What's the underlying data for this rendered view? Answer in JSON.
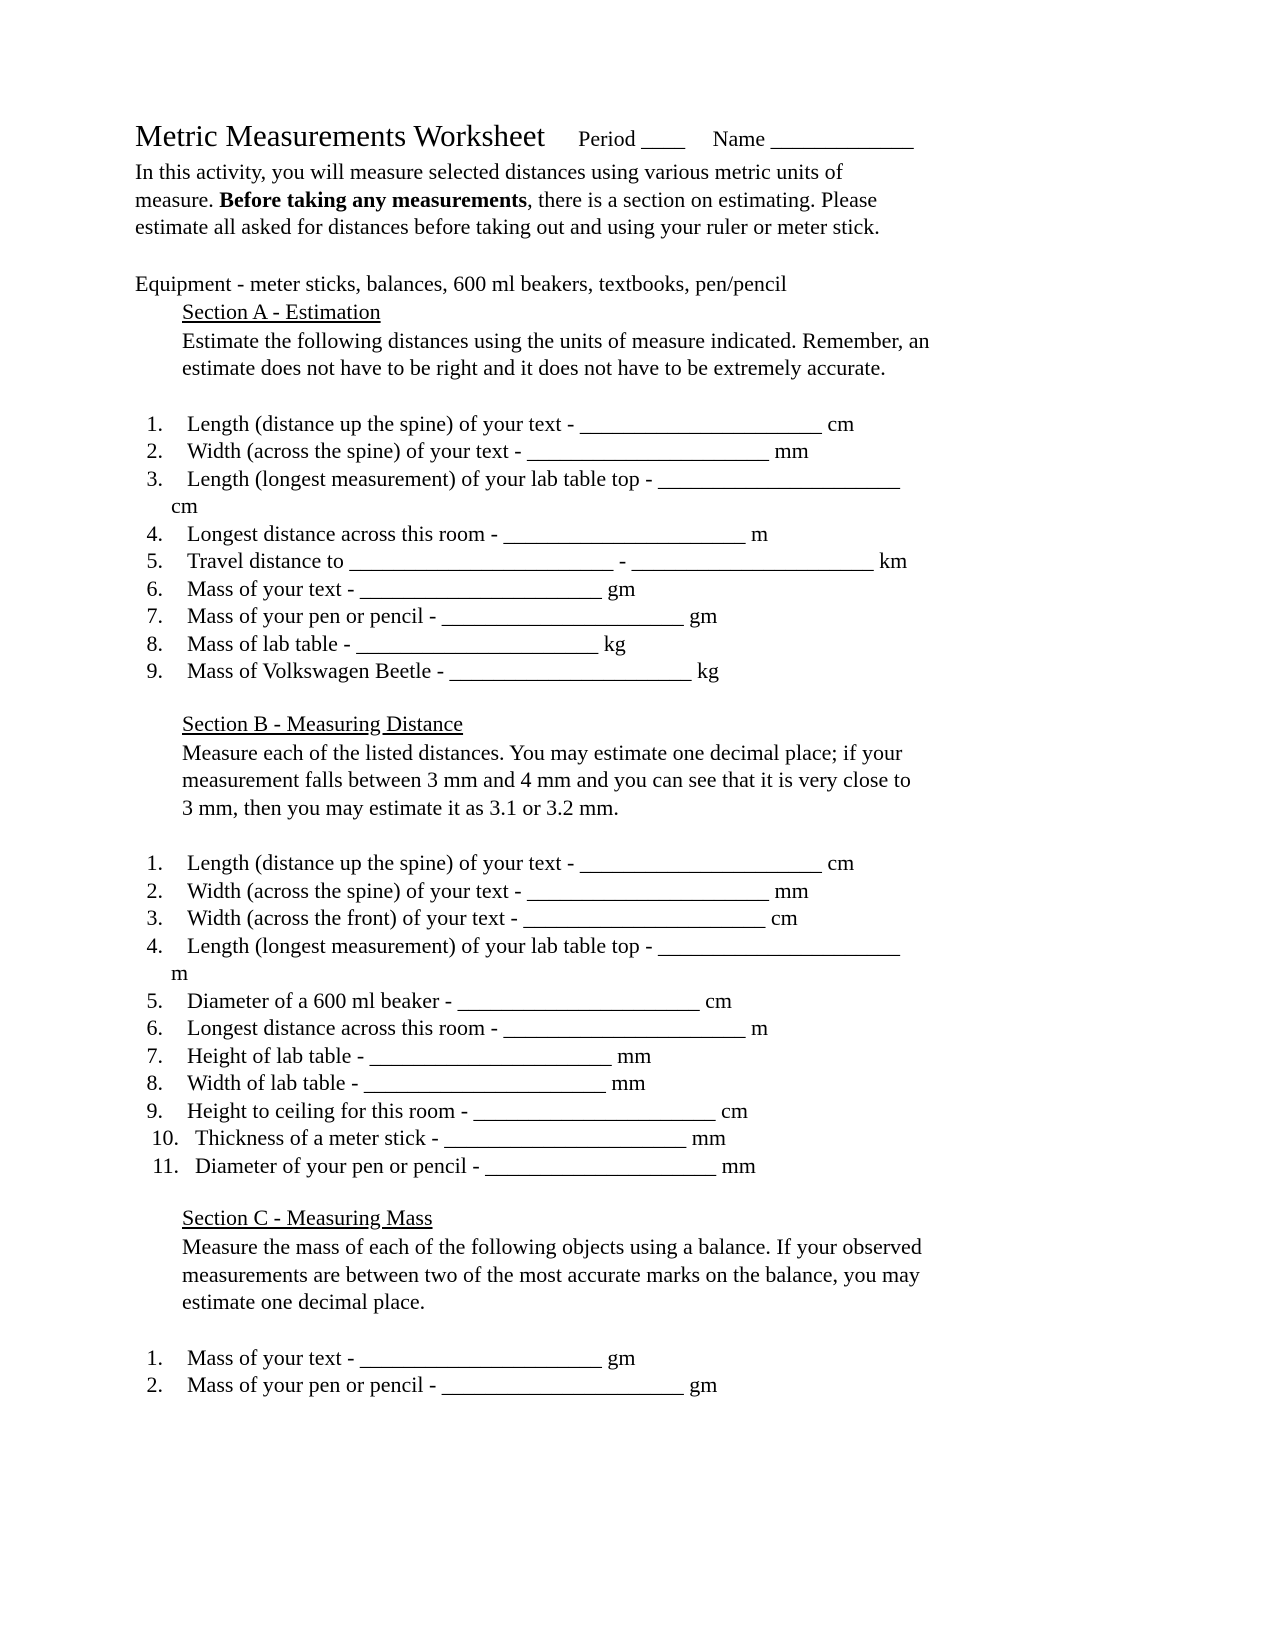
{
  "colors": {
    "text": "#000000",
    "background": "#ffffff"
  },
  "fonts": {
    "family": "Times New Roman",
    "title_size_pt": 24,
    "body_size_pt": 16
  },
  "header": {
    "title": "Metric Measurements Worksheet",
    "period_label": "Period ____",
    "name_label": "Name _____________"
  },
  "intro": {
    "line1": "In this activity, you will measure selected distances using various metric units of",
    "line2a": "measure. ",
    "line2b_bold": "Before taking any measurements",
    "line2c": ", there is a section on estimating. Please",
    "line3": "estimate all asked for distances before taking out and using your ruler or meter stick."
  },
  "equipment": "Equipment - meter sticks, balances, 600 ml beakers, textbooks, pen/pencil",
  "sectionA": {
    "heading": "Section A - Estimation",
    "desc1": "Estimate the following distances using the units of measure indicated. Remember, an",
    "desc2": "estimate does not have to be right and it does not have to be extremely accurate.",
    "items": [
      "Length (distance up the spine) of your text - ______________________ cm",
      "Width (across the spine) of your text - ______________________ mm",
      "Length (longest measurement) of your lab table top - ______________________",
      "Longest distance across this room - ______________________ m",
      "Travel distance to ________________________ - ______________________ km",
      "Mass of your text - ______________________ gm",
      "Mass of your pen or pencil - ______________________ gm",
      "Mass of lab table - ______________________ kg",
      "Mass of Volkswagen Beetle - ______________________ kg"
    ],
    "wrap3": "cm"
  },
  "sectionB": {
    "heading": "Section B - Measuring Distance",
    "desc1": "Measure each of the listed distances. You may estimate one decimal place; if your",
    "desc2": "measurement falls between 3 mm and 4 mm and you can see that it is very close to",
    "desc3": "3 mm, then you may estimate it as 3.1 or 3.2 mm.",
    "items": [
      "Length (distance up the spine) of your text - ______________________ cm",
      "Width (across the spine) of your text - ______________________ mm",
      "Width (across the front) of your text - ______________________ cm",
      "Length (longest measurement) of your lab table top - ______________________",
      "Diameter of a 600 ml beaker - ______________________ cm",
      "Longest distance across this room - ______________________ m",
      "Height of lab table - ______________________ mm",
      "Width of lab table - ______________________ mm",
      "Height to ceiling for this room - ______________________ cm",
      "Thickness of a meter stick - ______________________ mm",
      "Diameter of your pen or pencil - _____________________ mm"
    ],
    "wrap4": "m"
  },
  "sectionC": {
    "heading": "Section C - Measuring Mass",
    "desc1": "Measure the mass of each of the following objects using a balance. If your observed",
    "desc2": "measurements are between two of the most accurate marks on the balance, you may",
    "desc3": "estimate one decimal place.",
    "items": [
      "Mass of your text - ______________________ gm",
      "Mass of your pen or pencil - ______________________ gm"
    ]
  }
}
